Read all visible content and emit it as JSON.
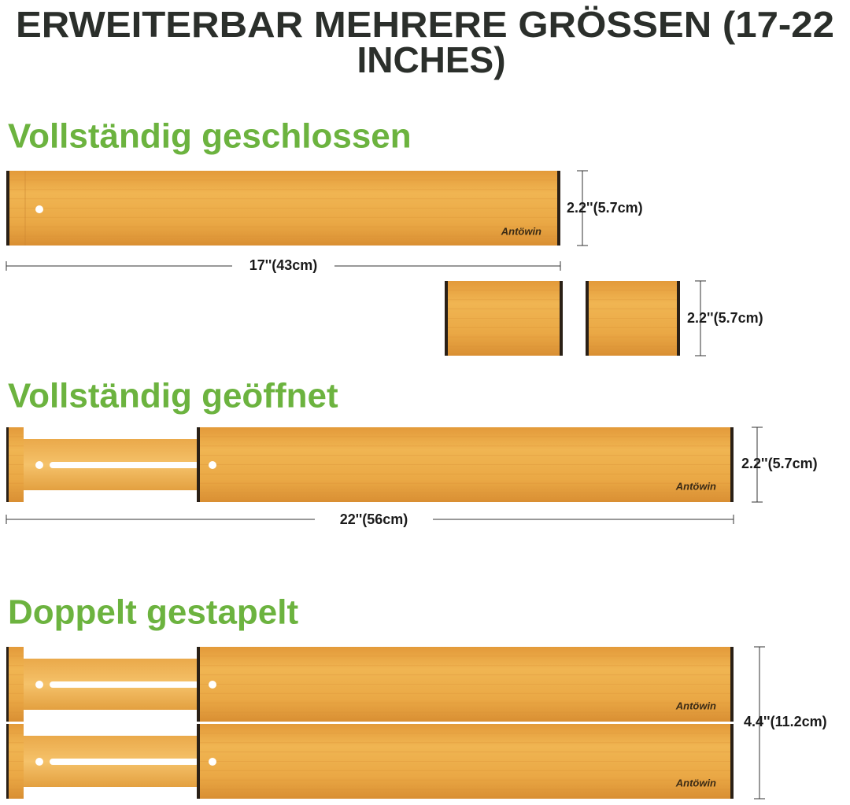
{
  "header": {
    "title_lines": [
      "ERWEITERBAR MEHRERE GRÖSSEN (17-22",
      "INCHES)"
    ]
  },
  "brand": "Antöwin",
  "sections": [
    {
      "heading": "Vollständig geschlossen",
      "height_label": "2.2''(5.7cm)",
      "length_label": "17''(43cm)",
      "pieces_height_label": "2.2''(5.7cm)"
    },
    {
      "heading": "Vollständig geöffnet",
      "height_label": "2.2''(5.7cm)",
      "length_label": "22''(56cm)"
    },
    {
      "heading": "Doppelt gestapelt",
      "height_label": "4.4''(11.2cm)"
    }
  ]
}
